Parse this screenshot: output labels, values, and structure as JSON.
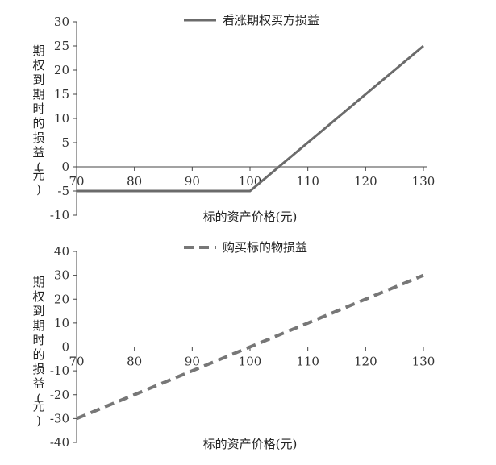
{
  "chart_data": [
    {
      "type": "line",
      "x": [
        70,
        100,
        130
      ],
      "series": [
        {
          "name": "看涨期权买方损益",
          "values": [
            -5,
            -5,
            25
          ],
          "color": "#6b6b6b",
          "dash": false
        }
      ],
      "ylim": [
        -10,
        30
      ],
      "yticks": [
        -10,
        -5,
        0,
        5,
        10,
        15,
        20,
        25,
        30
      ],
      "xticks": [
        70,
        80,
        90,
        100,
        110,
        120,
        130
      ],
      "xlabel": "标的资产价格(元)",
      "ylabel": "期权到期时的损益(元)",
      "legend": "top-center",
      "grid": false
    },
    {
      "type": "line",
      "x": [
        70,
        130
      ],
      "series": [
        {
          "name": "购买标的物损益",
          "values": [
            -30,
            30
          ],
          "color": "#777777",
          "dash": true
        }
      ],
      "ylim": [
        -40,
        40
      ],
      "yticks": [
        -40,
        -30,
        -20,
        -10,
        0,
        10,
        20,
        30,
        40
      ],
      "xticks": [
        70,
        80,
        90,
        100,
        110,
        120,
        130
      ],
      "xlabel": "标的资产价格(元)",
      "ylabel": "期权到期时的损益(元)",
      "legend": "top-center",
      "grid": false
    }
  ]
}
